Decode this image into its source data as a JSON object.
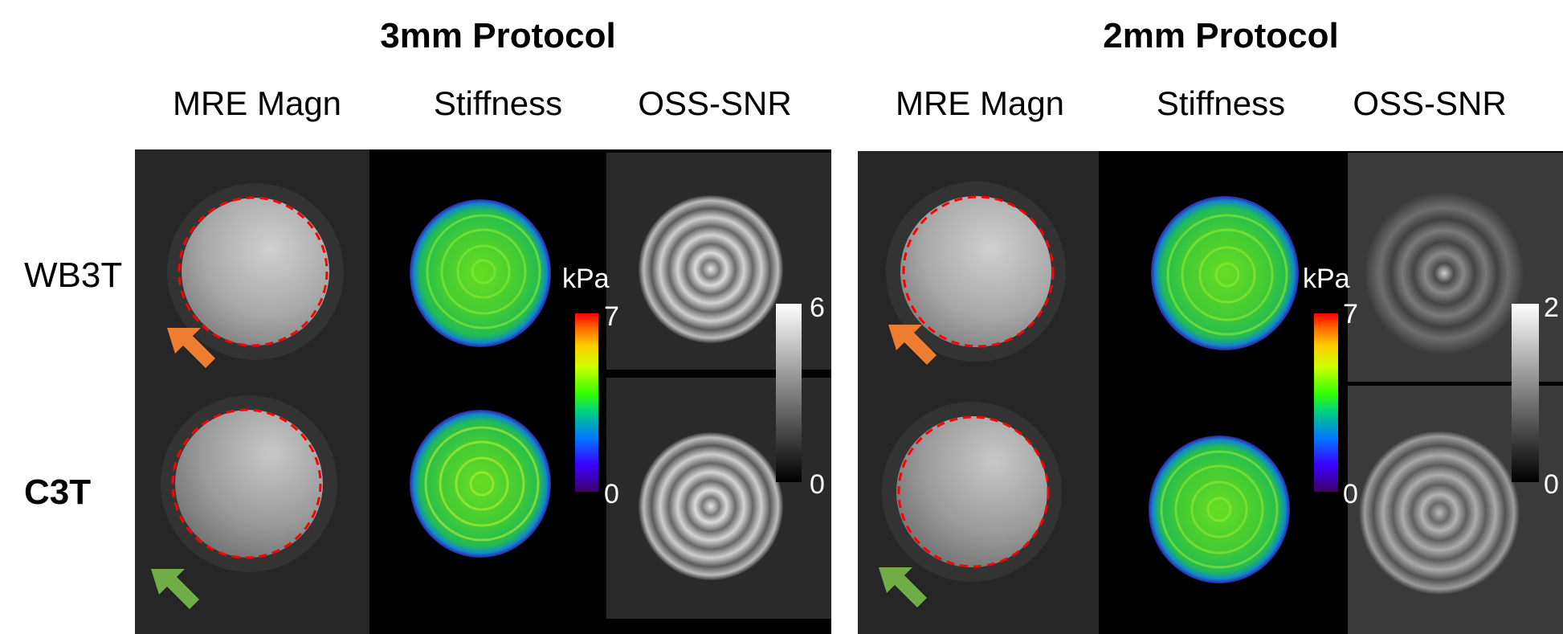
{
  "groups": [
    {
      "title": "3mm Protocol",
      "columns": [
        "MRE Magn",
        "Stiffness",
        "OSS-SNR"
      ],
      "stiffness_bar": {
        "unit": "kPa",
        "max": "7",
        "min": "0"
      },
      "snr_bar": {
        "max": "6",
        "min": "0"
      }
    },
    {
      "title": "2mm Protocol",
      "columns": [
        "MRE Magn",
        "Stiffness",
        "OSS-SNR"
      ],
      "stiffness_bar": {
        "unit": "kPa",
        "max": "7",
        "min": "0"
      },
      "snr_bar": {
        "max": "2",
        "min": "0"
      }
    }
  ],
  "rows": [
    "WB3T",
    "C3T"
  ],
  "colors": {
    "arrow_wb3t": "#ed7d31",
    "arrow_c3t": "#70ad47",
    "roi_outline": "#ff0000"
  },
  "icons": [
    "arrow-orange-icon",
    "arrow-green-icon"
  ]
}
